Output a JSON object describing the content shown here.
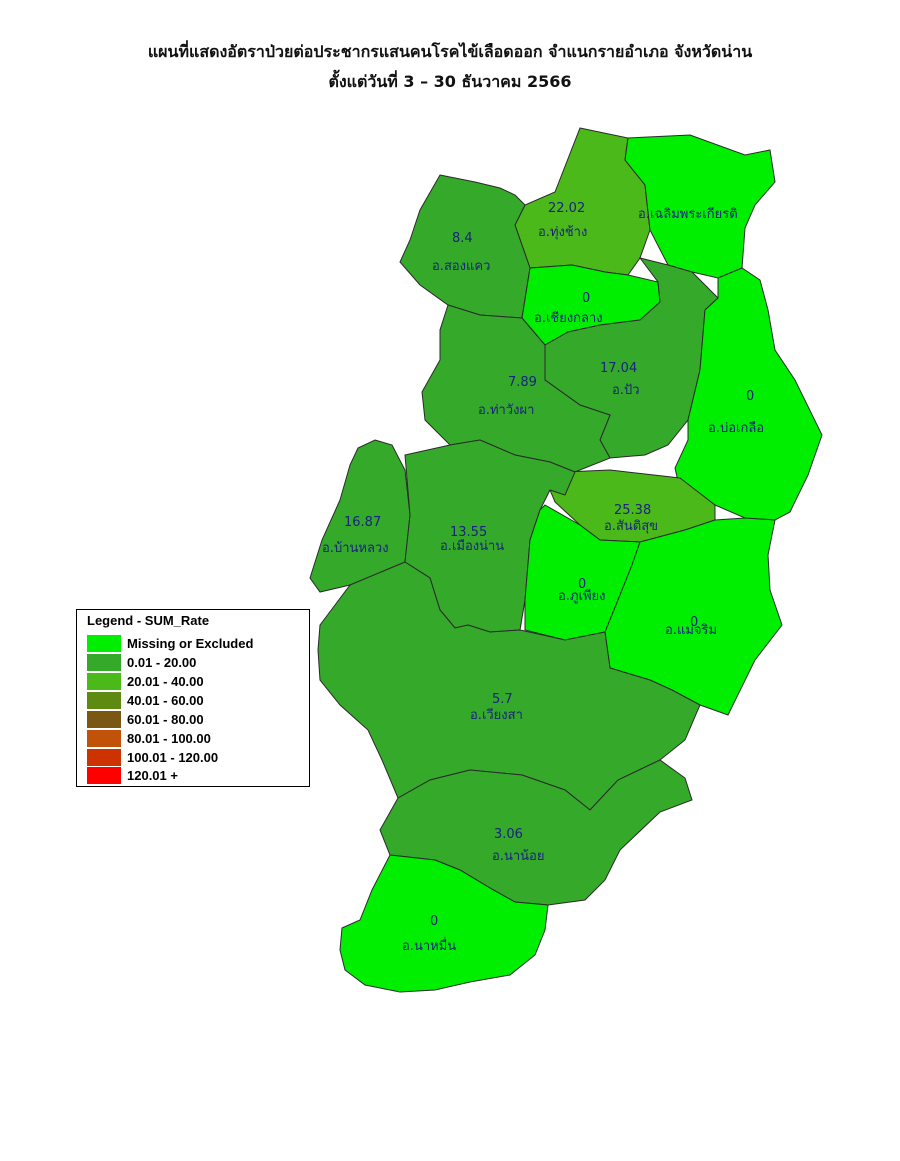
{
  "title_line1": "แผนที่แสดงอัตราป่วยต่อประชากรแสนคนโรคไข้เลือดออก จำแนกรายอำเภอ จังหวัดน่าน",
  "title_line2": "ตั้งแต่วันที่ 3 – 30 ธันวาคม 2566",
  "districts": [
    {
      "id": "thung-chang",
      "name": "อ.ทุ่งช้าง",
      "rate": "22.02",
      "fill": "#4CB91A"
    },
    {
      "id": "chaloem",
      "name": "อ.เฉลิมพระเกียรติ",
      "rate": "",
      "fill": "#00EE00"
    },
    {
      "id": "song-khwae",
      "name": "อ.สองแคว",
      "rate": "8.4",
      "fill": "#35A92A"
    },
    {
      "id": "chiang-klang",
      "name": "อ.เชียงกลาง",
      "rate": "0",
      "fill": "#00EE00"
    },
    {
      "id": "pua",
      "name": "อ.ปัว",
      "rate": "17.04",
      "fill": "#35A92A"
    },
    {
      "id": "tha-wang-pha",
      "name": "อ.ท่าวังผา",
      "rate": "7.89",
      "fill": "#35A92A"
    },
    {
      "id": "bo-kluea",
      "name": "อ.บ่อเกลือ",
      "rate": "0",
      "fill": "#00EE00"
    },
    {
      "id": "santi-suk",
      "name": "อ.สันติสุข",
      "rate": "25.38",
      "fill": "#4CB91A"
    },
    {
      "id": "ban-luang",
      "name": "อ.บ้านหลวง",
      "rate": "16.87",
      "fill": "#35A92A"
    },
    {
      "id": "mueang-nan",
      "name": "อ.เมืองน่าน",
      "rate": "13.55",
      "fill": "#35A92A"
    },
    {
      "id": "phu-phiang",
      "name": "อ.ภูเพียง",
      "rate": "0",
      "fill": "#00EE00"
    },
    {
      "id": "mae-charim",
      "name": "อ.แม่จริม",
      "rate": "0",
      "fill": "#00EE00"
    },
    {
      "id": "wiang-sa",
      "name": "อ.เวียงสา",
      "rate": "5.7",
      "fill": "#35A92A"
    },
    {
      "id": "na-noi",
      "name": "อ.นาน้อย",
      "rate": "3.06",
      "fill": "#35A92A"
    },
    {
      "id": "na-muen",
      "name": "อ.นาหมื่น",
      "rate": "0",
      "fill": "#00EE00"
    }
  ],
  "legend": {
    "title": "Legend - SUM_Rate",
    "items": [
      {
        "label": "Missing or Excluded",
        "color": "#00EE00"
      },
      {
        "label": "0.01 - 20.00",
        "color": "#35A92A"
      },
      {
        "label": "20.01 - 40.00",
        "color": "#4CB91A"
      },
      {
        "label": "40.01 - 60.00",
        "color": "#5F8A12"
      },
      {
        "label": "60.01 - 80.00",
        "color": "#7A5712"
      },
      {
        "label": "80.01 - 100.00",
        "color": "#C0520A"
      },
      {
        "label": "100.01 - 120.00",
        "color": "#CC3300"
      },
      {
        "label": "120.01 +",
        "color": "#FF0000"
      }
    ]
  }
}
